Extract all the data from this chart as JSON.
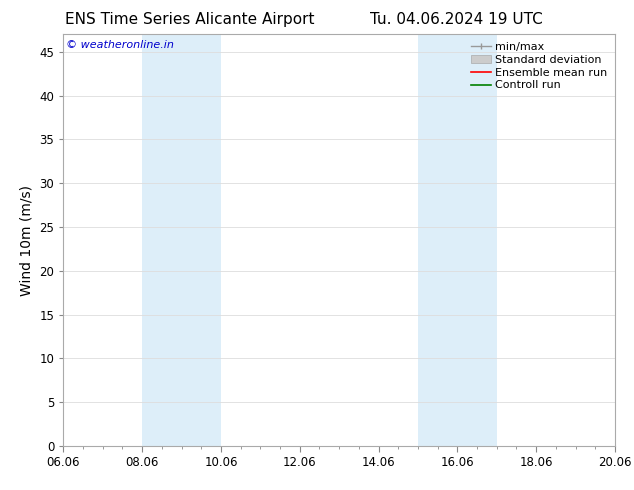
{
  "title_left": "ENS Time Series Alicante Airport",
  "title_right": "Tu. 04.06.2024 19 UTC",
  "ylabel": "Wind 10m (m/s)",
  "xlim_num": [
    0,
    14
  ],
  "xtick_positions": [
    0,
    2,
    4,
    6,
    8,
    10,
    12,
    14
  ],
  "xtick_labels": [
    "06.06",
    "08.06",
    "10.06",
    "12.06",
    "14.06",
    "16.06",
    "18.06",
    "20.06"
  ],
  "ylim": [
    0,
    47
  ],
  "ytick_positions": [
    0,
    5,
    10,
    15,
    20,
    25,
    30,
    35,
    40,
    45
  ],
  "ytick_labels": [
    "0",
    "5",
    "10",
    "15",
    "20",
    "25",
    "30",
    "35",
    "40",
    "45"
  ],
  "shaded_bands": [
    {
      "x_start": 2.0,
      "x_end": 4.0
    },
    {
      "x_start": 9.0,
      "x_end": 11.0
    }
  ],
  "band_color": "#ddeef9",
  "background_color": "#ffffff",
  "grid_color": "#dddddd",
  "watermark_text": "© weatheronline.in",
  "watermark_color": "#0000cc",
  "watermark_fontsize": 8,
  "legend_items": [
    {
      "label": "min/max",
      "color": "#999999",
      "lw": 1.0
    },
    {
      "label": "Standard deviation",
      "color": "#cccccc",
      "lw": 5
    },
    {
      "label": "Ensemble mean run",
      "color": "#ff0000",
      "lw": 1.2
    },
    {
      "label": "Controll run",
      "color": "#008000",
      "lw": 1.2
    }
  ],
  "title_fontsize": 11,
  "axis_label_fontsize": 10,
  "tick_fontsize": 8.5,
  "legend_fontsize": 8
}
